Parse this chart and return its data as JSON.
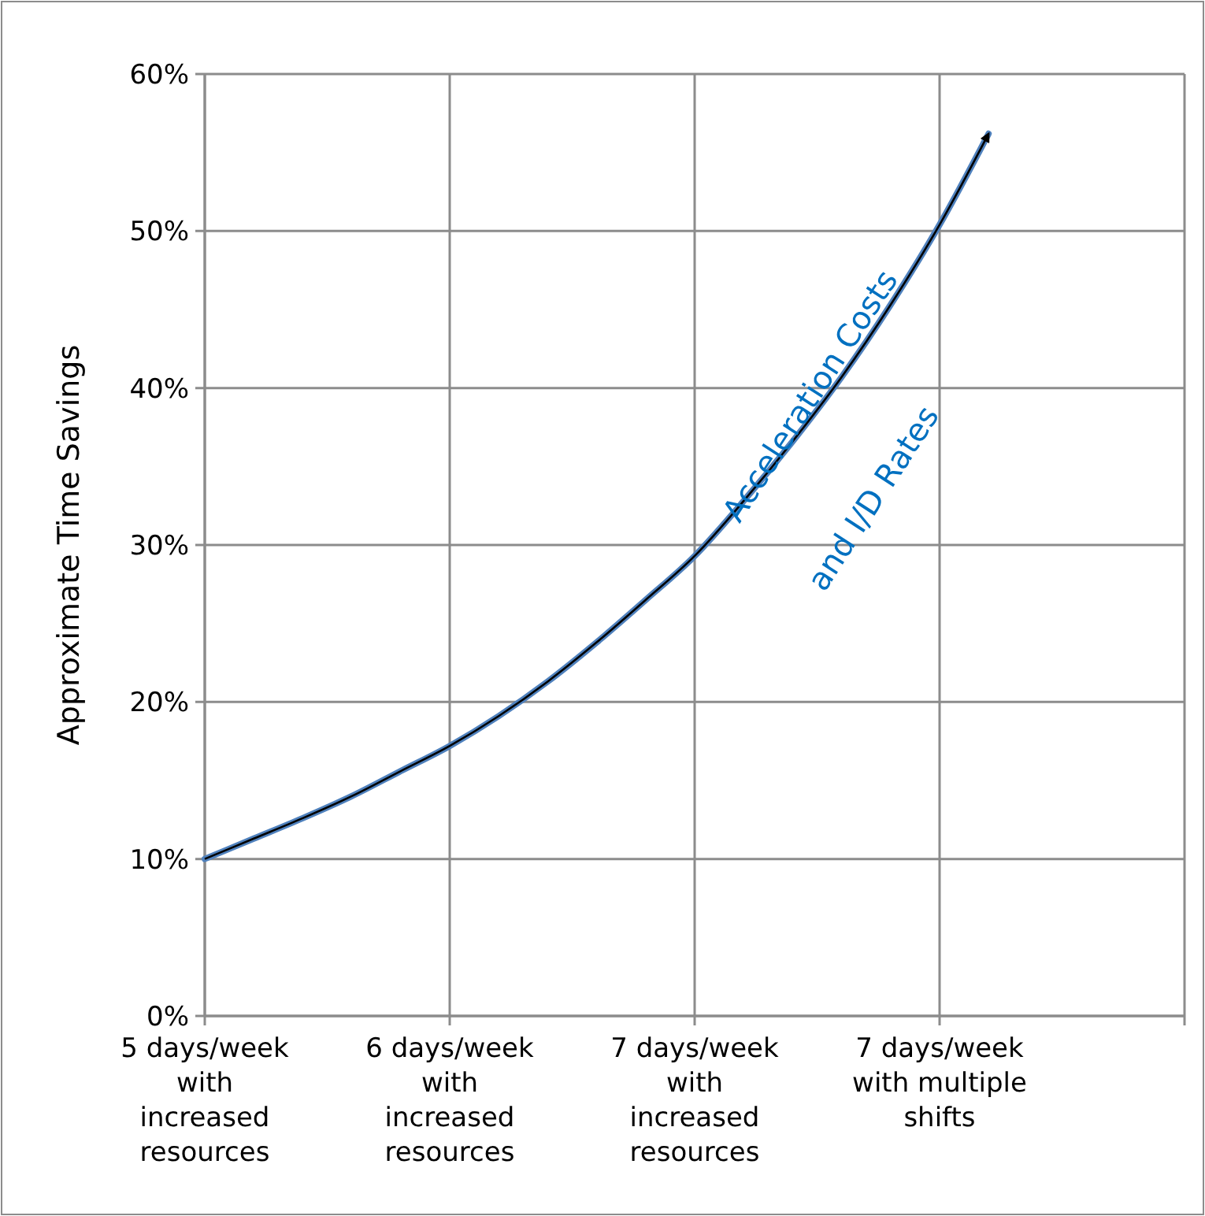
{
  "chart_data": {
    "type": "line",
    "ylabel": "Approximate Time Savings",
    "categories": [
      "5 days/week with increased resources",
      null,
      null,
      null,
      null,
      "6 days/week with increased resources",
      null,
      null,
      null,
      null,
      "7 days/week with increased resources",
      null,
      null,
      null,
      null,
      "7 days/week with multiple shifts",
      null,
      null,
      null,
      null,
      null
    ],
    "series": [
      {
        "color": "#4f81bd",
        "values": [
          10,
          11.3,
          12.6,
          14.0,
          15.6,
          17.2,
          19.1,
          21.3,
          23.8,
          26.5,
          29.3,
          32.8,
          36.6,
          40.7,
          45.3,
          50.4,
          56.2,
          null,
          null,
          null,
          null
        ]
      }
    ],
    "ylim": [
      0,
      60
    ],
    "yticks": [
      {
        "value": 0,
        "label": "0%"
      },
      {
        "value": 10,
        "label": "10%"
      },
      {
        "value": 20,
        "label": "20%"
      },
      {
        "value": 30,
        "label": "30%"
      },
      {
        "value": 40,
        "label": "40%"
      },
      {
        "value": 50,
        "label": "50%"
      },
      {
        "value": 60,
        "label": "60%"
      }
    ],
    "grid": true,
    "marker": "none",
    "line_style": "solid",
    "annotations": [
      "Acceleration Costs",
      "and I/D Rates"
    ]
  }
}
